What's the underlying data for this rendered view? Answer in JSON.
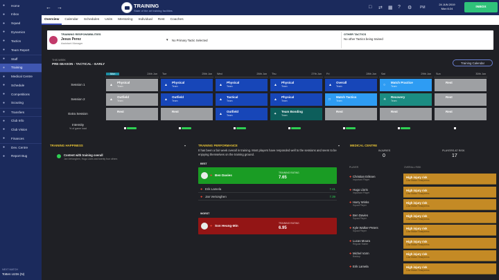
{
  "sidebar": {
    "items": [
      {
        "label": "Home",
        "icon": "home-icon"
      },
      {
        "label": "Inbox",
        "icon": "envelope-icon"
      },
      {
        "label": "Squad",
        "icon": "people-icon"
      },
      {
        "label": "Dynamics",
        "icon": "dynamics-icon"
      },
      {
        "label": "Tactics",
        "icon": "tactics-icon"
      },
      {
        "label": "Team Report",
        "icon": "report-icon"
      },
      {
        "label": "Staff",
        "icon": "staff-icon"
      },
      {
        "label": "Training",
        "icon": "training-icon"
      },
      {
        "label": "Medical Centre",
        "icon": "medical-icon"
      },
      {
        "label": "Schedule",
        "icon": "calendar-icon"
      },
      {
        "label": "Competitions",
        "icon": "trophy-icon"
      },
      {
        "label": "Scouting",
        "icon": "binoculars-icon"
      },
      {
        "label": "Transfers",
        "icon": "transfer-icon"
      },
      {
        "label": "Club Info",
        "icon": "club-icon"
      },
      {
        "label": "Club Vision",
        "icon": "vision-icon"
      },
      {
        "label": "Finances",
        "icon": "finances-icon"
      },
      {
        "label": "Dev. Centre",
        "icon": "dev-centre-icon"
      },
      {
        "label": "Report Bug",
        "icon": "bug-icon"
      }
    ],
    "next_match_label": "NEXT MATCH",
    "next_match_team": "Totten U23s (N)"
  },
  "topbar": {
    "title": "TRAINING",
    "subtitle": "State of the art training facilities",
    "date_line1": "24 JUN 2019",
    "date_line2": "Mon 6:24",
    "time_label": "PM",
    "inbox_label": "INBOX"
  },
  "subtabs": [
    "Overview",
    "Calendar",
    "Schedules",
    "Units",
    "Mentoring",
    "Individual",
    "Rest",
    "Coaches"
  ],
  "header": {
    "resp_label": "TRAINING RESPONSIBILITIES",
    "resp_name": "Jesus Perez",
    "resp_role": "Assistant Manager",
    "tactic_text": "No Primary Tactic Selected",
    "other_label": "OTHER TACTICS",
    "other_text": "No other Tactics being trained"
  },
  "schedule": {
    "week_label": "THIS WEEK",
    "schedule_name": "PRE-SEASON - TACTICAL - EARLY",
    "calendar_btn": "Training Calendar",
    "days": [
      {
        "name": "Mon",
        "date": "24th Jun"
      },
      {
        "name": "Tue",
        "date": "25th Jun"
      },
      {
        "name": "Wed",
        "date": "26th Jun"
      },
      {
        "name": "Thu",
        "date": "27th Jun"
      },
      {
        "name": "Fri",
        "date": "28th Jun"
      },
      {
        "name": "Sat",
        "date": "29th Jun"
      },
      {
        "name": "Sun",
        "date": "30th Jun"
      }
    ],
    "rows": [
      {
        "label": "Session 1",
        "cells": [
          {
            "t": "Physical",
            "s": "Team",
            "c": "grey"
          },
          {
            "t": "Physical",
            "s": "Team",
            "c": "blue"
          },
          {
            "t": "Physical",
            "s": "Team",
            "c": "blue"
          },
          {
            "t": "Physical",
            "s": "Team",
            "c": "blue"
          },
          {
            "t": "Overall",
            "s": "Team",
            "c": "blue"
          },
          {
            "t": "Match Practice",
            "s": "Team",
            "c": "lblue"
          },
          {
            "t": "Rest",
            "s": "",
            "c": "grey"
          }
        ]
      },
      {
        "label": "Session 2",
        "cells": [
          {
            "t": "Outfield",
            "s": "Team",
            "c": "grey"
          },
          {
            "t": "Outfield",
            "s": "Team",
            "c": "blue"
          },
          {
            "t": "Tactical",
            "s": "Team",
            "c": "blue"
          },
          {
            "t": "Physical",
            "s": "Team",
            "c": "blue"
          },
          {
            "t": "Match Tactics",
            "s": "Team",
            "c": "lblue"
          },
          {
            "t": "Recovery",
            "s": "Team",
            "c": "teal"
          },
          {
            "t": "Rest",
            "s": "",
            "c": "grey"
          }
        ]
      },
      {
        "label": "Extra Session",
        "cells": [
          {
            "t": "Rest",
            "s": "",
            "c": "grey"
          },
          {
            "t": "Rest",
            "s": "",
            "c": "grey"
          },
          {
            "t": "Outfield",
            "s": "Team",
            "c": "blue"
          },
          {
            "t": "Team Bonding",
            "s": "Team",
            "c": "ddteal"
          },
          {
            "t": "Rest",
            "s": "",
            "c": "grey"
          },
          {
            "t": "Rest",
            "s": "",
            "c": "grey"
          },
          {
            "t": "Rest",
            "s": "",
            "c": "grey"
          }
        ]
      }
    ],
    "intensity_label": "Intensity",
    "intensity_sub": "% of game load"
  },
  "happiness": {
    "header": "TRAINING HAPPINESS",
    "line1": "Content with training overall",
    "line2": "Jan Vertonghen, Hugo Lloris and twenty four others"
  },
  "performance": {
    "header": "TRAINING PERFORMANCE",
    "summary": "It has been a fair week overall in training. Most players have responded well to the sessions and seem to be enjoying themselves on the training ground.",
    "best_label": "BEST",
    "best_name": "Ben Davies",
    "rating_label": "TRAINING RATING",
    "best_rating": "7.65",
    "others": [
      {
        "name": "Erik Lamela",
        "rating": "7.41"
      },
      {
        "name": "Jan Vertonghen",
        "rating": "7.39"
      }
    ],
    "worst_label": "WORST",
    "worst_name": "Son Heung-Min",
    "worst_rating": "6.95"
  },
  "medical": {
    "header": "MEDICAL CENTRE",
    "injuries_label": "INJURIES",
    "injuries_value": "0",
    "risk_label": "PLAYERS AT RISK",
    "risk_value": "17",
    "col_player": "PLAYER",
    "col_risk": "OVERALL RISK",
    "players": [
      {
        "name": "Christian Eriksen",
        "role": "Important Player"
      },
      {
        "name": "Hugo Lloris",
        "role": "Important Player"
      },
      {
        "name": "Harry Winks",
        "role": "Squad Player"
      },
      {
        "name": "Ben Davies",
        "role": "Squad Player"
      },
      {
        "name": "Kyle Walker-Peters",
        "role": "Squad Player"
      },
      {
        "name": "Lucas Moura",
        "role": "Regular Starter"
      },
      {
        "name": "Michel Vorm",
        "role": "Backup"
      },
      {
        "name": "Erik Lamela",
        "role": ""
      }
    ],
    "risk_text": "High injury risk",
    "risk_reason": "Low Match Sharpness"
  }
}
